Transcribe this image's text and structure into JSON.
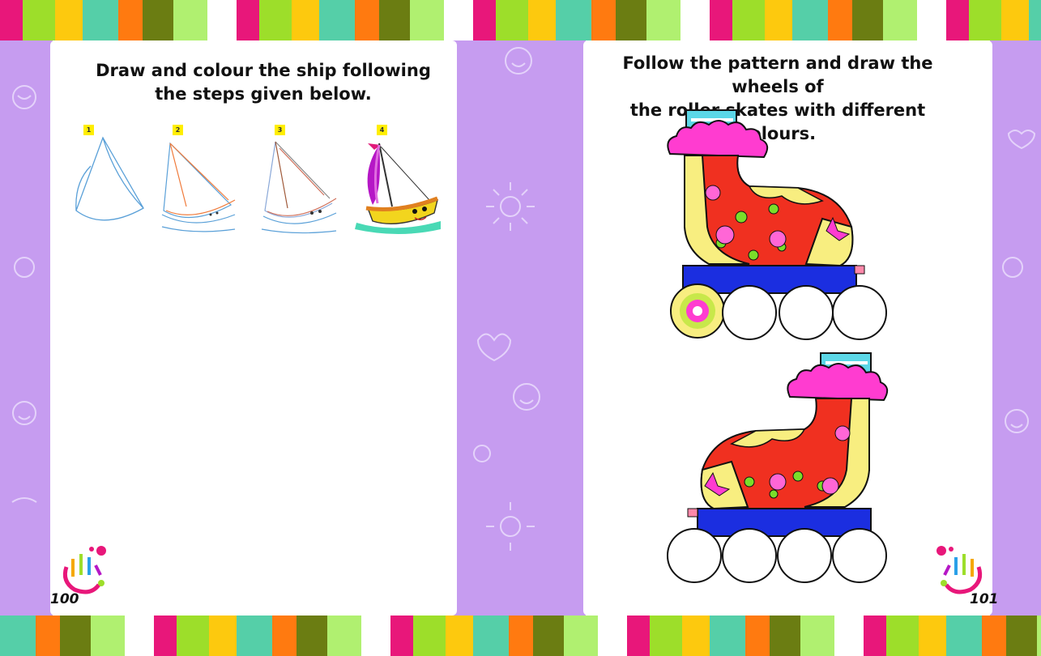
{
  "left_page": {
    "title_line1": "Draw and colour the ship following",
    "title_line2": "the steps given below.",
    "step_labels": [
      "1",
      "2",
      "3",
      "4"
    ],
    "page_number": "100"
  },
  "right_page": {
    "title_line1": "Follow the pattern and draw the wheels of",
    "title_line2": "the roller skates with different colours.",
    "page_number": "101"
  },
  "colors": {
    "border_purple": "#c69cf0",
    "stripe_palette": [
      "#e8177a",
      "#9dde2a",
      "#fdc90e",
      "#55cfa8",
      "#ff7a10",
      "#6b7d12",
      "#b0f070",
      "#ffffff"
    ]
  },
  "icons": [
    "handprint-icon",
    "sailboat-icon",
    "roller-skate-icon"
  ]
}
